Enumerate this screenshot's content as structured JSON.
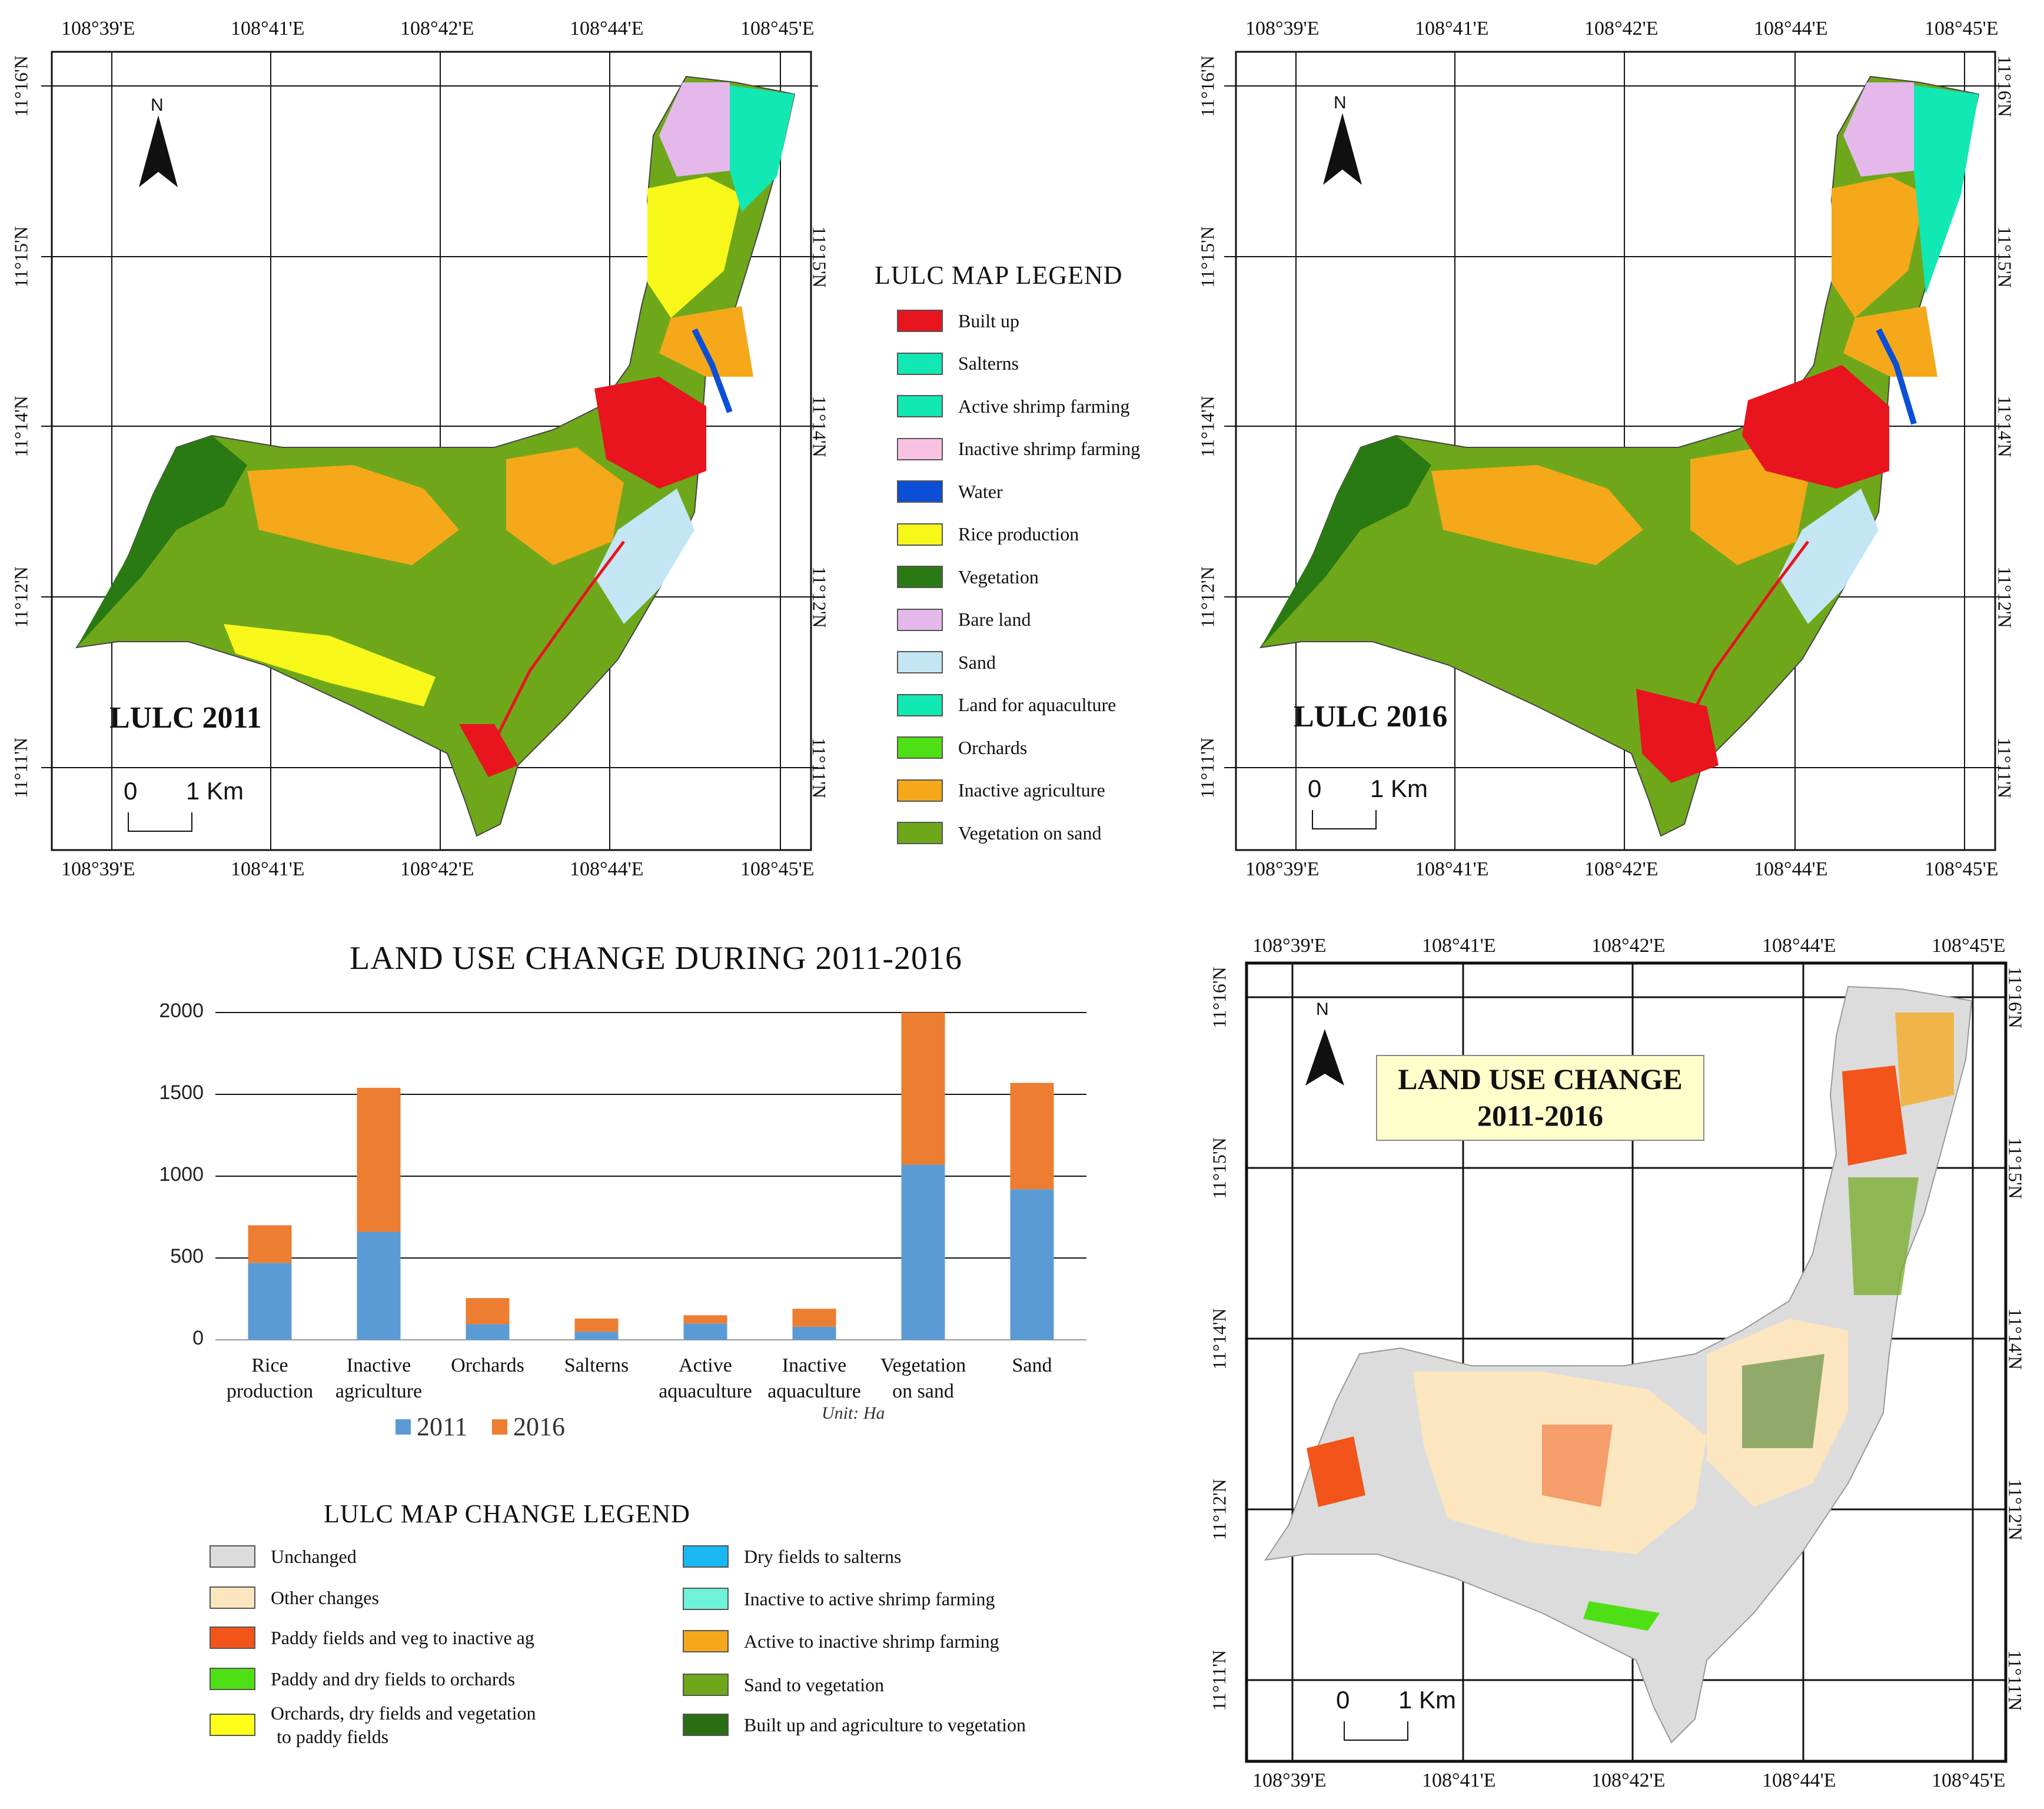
{
  "maps": {
    "lon_labels": [
      "108°39'E",
      "108°41'E",
      "108°42'E",
      "108°44'E",
      "108°45'E"
    ],
    "lat_labels": [
      "11°16'N",
      "11°15'N",
      "11°14'N",
      "11°12'N",
      "11°11'N"
    ],
    "north": "N",
    "scale_zero": "0",
    "scale_km": "1 Km",
    "map_2011_title": "LULC 2011",
    "map_2016_title": "LULC 2016",
    "change_title_line1": "LAND USE CHANGE",
    "change_title_line2": "2011-2016"
  },
  "lulc_legend": {
    "title": "LULC MAP LEGEND",
    "items": [
      {
        "label": "Built up",
        "color": "#e8141e"
      },
      {
        "label": "Salterns",
        "color": "#12e8b4"
      },
      {
        "label": "Active shrimp farming",
        "color": "#12e8b4"
      },
      {
        "label": "Inactive shrimp farming",
        "color": "#f9c2e2"
      },
      {
        "label": "Water",
        "color": "#0a4fd6"
      },
      {
        "label": "Rice production",
        "color": "#f7f71a"
      },
      {
        "label": "Vegetation",
        "color": "#2a7a14"
      },
      {
        "label": "Bare land",
        "color": "#e5b8ec"
      },
      {
        "label": "Sand",
        "color": "#c4e6f4"
      },
      {
        "label": "Land for aquaculture",
        "color": "#12e8b4"
      },
      {
        "label": "Orchards",
        "color": "#4ee014"
      },
      {
        "label": "Inactive agriculture",
        "color": "#f5a81a"
      },
      {
        "label": "Vegetation on sand",
        "color": "#6ea81a"
      }
    ]
  },
  "change_legend": {
    "title": "LULC MAP CHANGE LEGEND",
    "left": [
      {
        "label": "Unchanged",
        "color": "#dcdcdc"
      },
      {
        "label": "Other changes",
        "color": "#fbe6bf"
      },
      {
        "label": "Paddy fields and veg to inactive ag",
        "color": "#f2541a"
      },
      {
        "label": "Paddy and dry fields to orchards",
        "color": "#4ee014"
      },
      {
        "label": "Orchards, dry fields and vegetation",
        "label2": "to paddy fields",
        "color": "#ffff1a"
      }
    ],
    "right": [
      {
        "label": "Dry fields to salterns",
        "color": "#1ab8f2"
      },
      {
        "label": "Inactive to active shrimp farming",
        "color": "#6ef2d8"
      },
      {
        "label": "Active to inactive shrimp farming",
        "color": "#f5a81a"
      },
      {
        "label": "Sand to vegetation",
        "color": "#6ea81a"
      },
      {
        "label": "Built up and agriculture to vegetation",
        "color": "#2a6e14"
      }
    ]
  },
  "chart_data": {
    "type": "bar",
    "stacked": true,
    "title": "LAND USE CHANGE DURING 2011-2016",
    "categories": [
      [
        "Rice",
        "production"
      ],
      [
        "Inactive",
        "agriculture"
      ],
      [
        "Orchards",
        ""
      ],
      [
        "Salterns",
        ""
      ],
      [
        "Active",
        "aquaculture"
      ],
      [
        "Inactive",
        "aquaculture"
      ],
      [
        "Vegetation",
        "on sand"
      ],
      [
        "Sand",
        ""
      ]
    ],
    "series": [
      {
        "name": "2011",
        "color": "#5b9bd5",
        "values": [
          470,
          660,
          95,
          50,
          100,
          80,
          1070,
          920
        ]
      },
      {
        "name": "2016",
        "color": "#ed7d31",
        "values": [
          230,
          880,
          160,
          80,
          50,
          110,
          930,
          650
        ]
      }
    ],
    "yticks": [
      0,
      500,
      1000,
      1500,
      2000
    ],
    "ylim": [
      0,
      2000
    ],
    "unit": "Unit: Ha",
    "xlabel": "",
    "ylabel": ""
  }
}
